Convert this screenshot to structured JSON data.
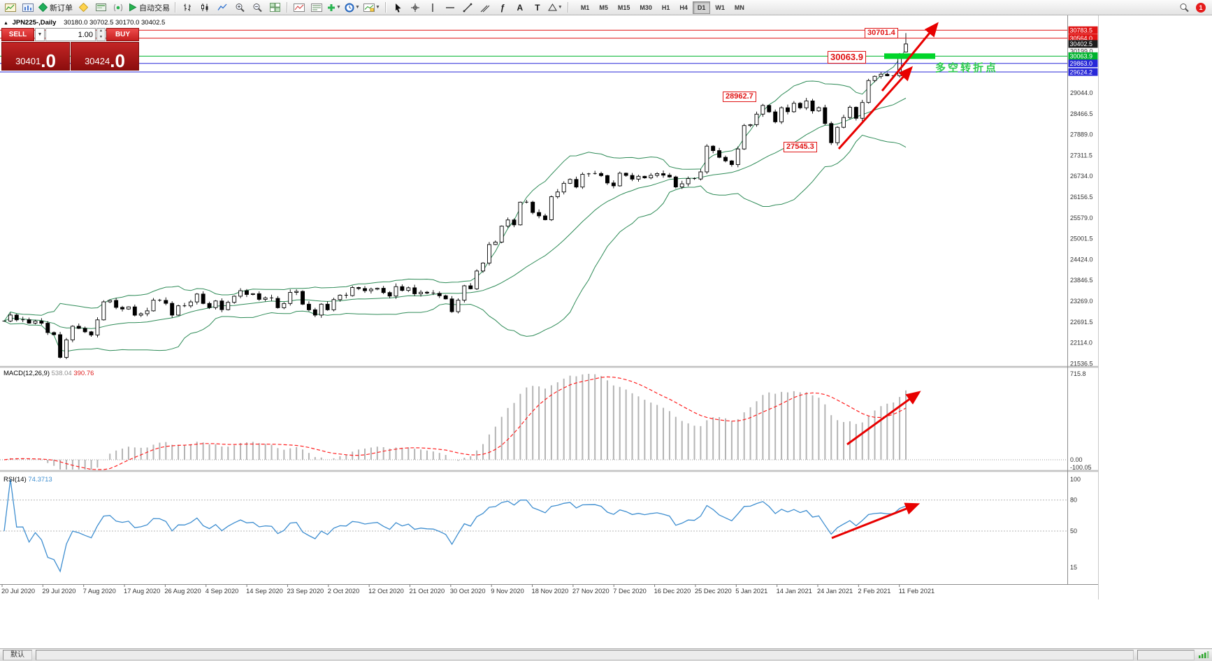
{
  "toolbar": {
    "new_order_label": "新订单",
    "autotrading_label": "自动交易",
    "timeframes": [
      "M1",
      "M5",
      "M15",
      "M30",
      "H1",
      "H4",
      "D1",
      "W1",
      "MN"
    ],
    "active_timeframe": "D1",
    "notification_count": "1"
  },
  "chart_header": {
    "collapse_icon": "▲",
    "symbol": "JPN225-,Daily",
    "ohlc": "30180.0 30702.5 30170.0 30402.5"
  },
  "trade_panel": {
    "sell_label": "SELL",
    "buy_label": "BUY",
    "volume": "1.00",
    "sell_price": "30401",
    "sell_pips": ".0",
    "buy_price": "30424",
    "buy_pips": ".0"
  },
  "annotations": {
    "high": "30701.4",
    "level": "30063.9",
    "mid": "28962.7",
    "low": "27545.3",
    "cn_note": "多空转折点"
  },
  "price_axis": {
    "badges": [
      {
        "label": "30783.5",
        "color": "#e01414"
      },
      {
        "label": "30564.0",
        "color": "#e01414"
      },
      {
        "label": "30402.5",
        "color": "#1c1c1c"
      },
      {
        "label": "30063.9",
        "color": "#00b32e"
      },
      {
        "label": "29863.0",
        "color": "#2828d8"
      },
      {
        "label": "29624.2",
        "color": "#2828d8"
      }
    ],
    "ticks": [
      "30199.0",
      "29044.0",
      "28466.5",
      "27889.0",
      "27311.5",
      "26734.0",
      "26156.5",
      "25579.0",
      "25001.5",
      "24424.0",
      "23846.5",
      "23269.0",
      "22691.5",
      "22114.0",
      "21536.5"
    ]
  },
  "macd_panel": {
    "label": "MACD(12,26,9)",
    "value1": "538.04",
    "value2": "390.76",
    "axis_max": "715.8",
    "axis_zero": "0.00",
    "axis_min": "-100.05"
  },
  "rsi_panel": {
    "label": "RSI(14)",
    "value": "74.3713",
    "axis": [
      {
        "label": "100",
        "value": 100
      },
      {
        "label": "80",
        "value": 80
      },
      {
        "label": "50",
        "value": 50
      },
      {
        "label": "15",
        "value": 15
      }
    ],
    "levels": [
      80,
      50
    ]
  },
  "date_axis": [
    "20 Jul 2020",
    "29 Jul 2020",
    "7 Aug 2020",
    "17 Aug 2020",
    "26 Aug 2020",
    "4 Sep 2020",
    "14 Sep 2020",
    "23 Sep 2020",
    "2 Oct 2020",
    "12 Oct 2020",
    "21 Oct 2020",
    "30 Oct 2020",
    "9 Nov 2020",
    "18 Nov 2020",
    "27 Nov 2020",
    "7 Dec 2020",
    "16 Dec 2020",
    "25 Dec 2020",
    "5 Jan 2021",
    "14 Jan 2021",
    "24 Jan 2021",
    "2 Feb 2021",
    "11 Feb 2021"
  ],
  "status_bar": {
    "profile": "默认"
  },
  "colors": {
    "bollinger": "#2E8B57",
    "candle_outline": "#000000",
    "bull_fill": "#ffffff",
    "bear_fill": "#000000",
    "macd_histogram": "#b4b4b4",
    "macd_signal": "#ff2020",
    "rsi_line": "#3e8ed0",
    "arrow": "#e80000",
    "level_highlight": "#00d52a",
    "annotation_red": "#e01414"
  },
  "chart_data": {
    "type": "candlestick",
    "symbol": "JPN225",
    "timeframe": "Daily",
    "overlays": [
      "Bollinger Bands"
    ],
    "indicators": [
      "MACD(12,26,9)",
      "RSI(14)"
    ],
    "last_bar": {
      "open": 30180.0,
      "high": 30702.5,
      "low": 30170.0,
      "close": 30402.5
    },
    "y_axis_range": [
      21501.5,
      30783.5
    ],
    "closes": [
      22717,
      22884,
      22751,
      22752,
      22659,
      22715,
      22657,
      22397,
      22339,
      21710,
      22195,
      22573,
      22514,
      22418,
      22330,
      22750,
      23249,
      23289,
      23096,
      23051,
      23110,
      22880,
      22920,
      23000,
      23296,
      23290,
      23208,
      22882,
      23140,
      23138,
      23247,
      23466,
      23205,
      23090,
      23274,
      23033,
      23235,
      23406,
      23559,
      23454,
      23475,
      23319,
      23360,
      23346,
      23087,
      23204,
      23511,
      23539,
      23185,
      23029,
      22882,
      23185,
      23029,
      23312,
      23433,
      23422,
      23647,
      23619,
      23558,
      23601,
      23626,
      23507,
      23410,
      23671,
      23567,
      23639,
      23474,
      23516,
      23494,
      23485,
      23418,
      23331,
      22977,
      23295,
      23695,
      23611,
      24105,
      24325,
      24839,
      24906,
      25349,
      25521,
      25385,
      26014,
      26015,
      25728,
      25634,
      25527,
      26165,
      26297,
      26537,
      26645,
      26434,
      26787,
      26800,
      26809,
      26751,
      26547,
      26467,
      26817,
      26756,
      26653,
      26732,
      26688,
      26757,
      26806,
      26763,
      26714,
      26436,
      26524,
      26668,
      26657,
      26854,
      27568,
      27444,
      27258,
      27159,
      27056,
      27490,
      28139,
      28164,
      28456,
      28698,
      28519,
      28242,
      28633,
      28523,
      28757,
      28631,
      28822,
      28546,
      28635,
      28197,
      27663,
      28091,
      28362,
      28646,
      28341,
      28779,
      29388,
      29505,
      29563,
      29520,
      29520,
      30084,
      30402.5
    ]
  }
}
